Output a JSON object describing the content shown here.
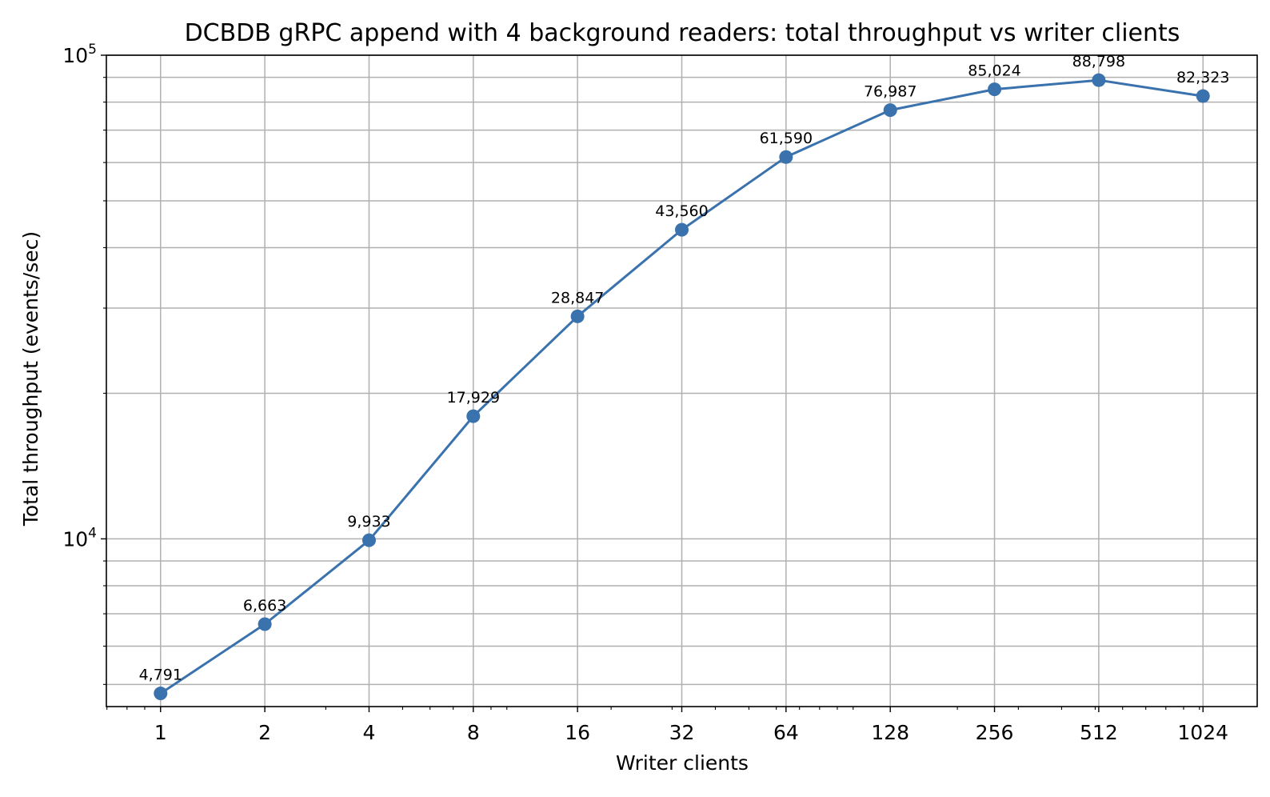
{
  "chart_data": {
    "type": "line",
    "title": "DCBDB gRPC append with 4 background readers: total throughput vs writer clients",
    "xlabel": "Writer clients",
    "ylabel": "Total throughput (events/sec)",
    "xscale": "log2",
    "yscale": "log10",
    "x": [
      1,
      2,
      4,
      8,
      16,
      32,
      64,
      128,
      256,
      512,
      1024
    ],
    "x_tick_labels": [
      "1",
      "2",
      "4",
      "8",
      "16",
      "32",
      "64",
      "128",
      "256",
      "512",
      "1024"
    ],
    "ylim": [
      4500,
      100000
    ],
    "y_tick_labels": [
      {
        "value": 10000,
        "base": "10",
        "exp": "4"
      },
      {
        "value": 100000,
        "base": "10",
        "exp": "5"
      }
    ],
    "grid": true,
    "legend": "none",
    "series": [
      {
        "values": [
          4791,
          6663,
          9933,
          17929,
          28847,
          43560,
          61590,
          76987,
          85024,
          88798,
          82323
        ],
        "data_labels": [
          "4,791",
          "6,663",
          "9,933",
          "17,929",
          "28,847",
          "43,560",
          "61,590",
          "76,987",
          "85,024",
          "88,798",
          "82,323"
        ],
        "color": "#3a72ad"
      }
    ]
  }
}
